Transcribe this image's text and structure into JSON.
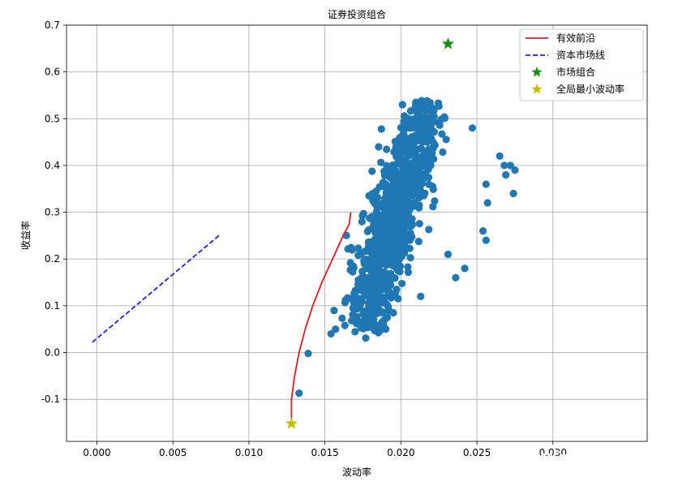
{
  "chart_data": {
    "type": "scatter",
    "title": "证券投资组合",
    "xlabel": "波动率",
    "ylabel": "收益率",
    "xlim": [
      -0.002,
      0.0362
    ],
    "ylim": [
      -0.19,
      0.7
    ],
    "x_ticks": [
      0.0,
      0.005,
      0.01,
      0.015,
      0.02,
      0.025,
      0.03
    ],
    "x_tick_labels": [
      "0.000",
      "0.005",
      "0.010",
      "0.015",
      "0.020",
      "0.025",
      "0.030"
    ],
    "y_ticks": [
      -0.1,
      0.0,
      0.1,
      0.2,
      0.3,
      0.4,
      0.5,
      0.6,
      0.7
    ],
    "y_tick_labels": [
      "-0.1",
      "0.0",
      "0.1",
      "0.2",
      "0.3",
      "0.4",
      "0.5",
      "0.6",
      "0.7"
    ],
    "grid": true,
    "legend_position": "top-right",
    "legend": [
      {
        "label": "有效前沿",
        "marker": "line",
        "color": "#e41a1c"
      },
      {
        "label": "资本市场线",
        "marker": "dashed",
        "color": "#1f1fdf"
      },
      {
        "label": "市场组合",
        "marker": "star",
        "color": "#138f13"
      },
      {
        "label": "全局最小波动率",
        "marker": "star",
        "color": "#bfbf00"
      }
    ],
    "series": [
      {
        "name": "有效前沿",
        "kind": "line",
        "color": "#e41a1c",
        "points": [
          [
            0.0128,
            -0.155
          ],
          [
            0.0128,
            -0.1
          ],
          [
            0.013,
            -0.05
          ],
          [
            0.0133,
            0.0
          ],
          [
            0.0137,
            0.05
          ],
          [
            0.0142,
            0.1
          ],
          [
            0.0148,
            0.15
          ],
          [
            0.0155,
            0.2
          ],
          [
            0.0162,
            0.25
          ],
          [
            0.0166,
            0.275
          ],
          [
            0.0167,
            0.3
          ]
        ]
      },
      {
        "name": "资本市场线",
        "kind": "dashed-line",
        "color": "#1f1fdf",
        "points": [
          [
            -0.0003,
            0.022
          ],
          [
            0.0081,
            0.252
          ]
        ]
      },
      {
        "name": "市场组合",
        "kind": "star",
        "color": "#138f13",
        "points": [
          [
            0.0231,
            0.66
          ]
        ]
      },
      {
        "name": "全局最小波动率",
        "kind": "star",
        "color": "#bfbf00",
        "points": [
          [
            0.0128,
            -0.152
          ]
        ]
      },
      {
        "name": "",
        "kind": "scatter-cloud",
        "color": "#1f77b4",
        "count": 1100,
        "center": [
          0.0195,
          0.28
        ],
        "spread": [
          0.0015,
          0.08
        ],
        "slope": 85,
        "xrange": [
          0.015,
          0.0245
        ],
        "yrange": [
          0.03,
          0.54
        ]
      },
      {
        "name": "",
        "kind": "scatter",
        "color": "#1f77b4",
        "points": [
          [
            0.0133,
            -0.087
          ],
          [
            0.0139,
            -0.002
          ],
          [
            0.0154,
            0.04
          ],
          [
            0.0157,
            0.05
          ],
          [
            0.0156,
            0.09
          ],
          [
            0.0256,
            0.24
          ],
          [
            0.0265,
            0.42
          ],
          [
            0.0268,
            0.4
          ],
          [
            0.0272,
            0.4
          ],
          [
            0.0274,
            0.34
          ],
          [
            0.0275,
            0.39
          ],
          [
            0.0269,
            0.38
          ],
          [
            0.0256,
            0.36
          ],
          [
            0.0257,
            0.32
          ],
          [
            0.0247,
            0.48
          ],
          [
            0.0254,
            0.26
          ],
          [
            0.0242,
            0.18
          ],
          [
            0.0236,
            0.16
          ],
          [
            0.0231,
            0.21
          ],
          [
            0.0213,
            0.12
          ],
          [
            0.019,
            0.05
          ],
          [
            0.0171,
            0.07
          ],
          [
            0.0183,
            0.06
          ],
          [
            0.0195,
            0.085
          ],
          [
            0.0201,
            0.53
          ]
        ]
      }
    ]
  },
  "watermark": "知乎 @湖边柠檬树",
  "colors": {
    "grid": "#b0b0b0",
    "axis": "#000000",
    "background": "#ffffff"
  }
}
